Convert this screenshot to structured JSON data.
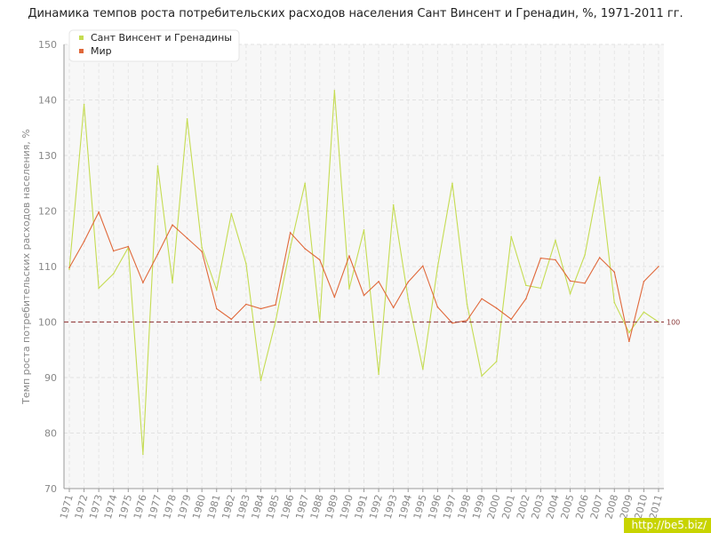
{
  "chart_data": {
    "type": "line",
    "title": "Динамика темпов роста потребительских расходов населения Сант Винсент и Гренадин, %, 1971-2011 гг.",
    "xlabel": "",
    "ylabel": "Темп роста потребительских расходов населения, %",
    "ylim": [
      70,
      150
    ],
    "yticks": [
      70,
      80,
      90,
      100,
      110,
      120,
      130,
      140,
      150
    ],
    "grid": true,
    "legend_position": "top-left",
    "x": [
      "1971",
      "1972",
      "1973",
      "1974",
      "1975",
      "1976",
      "1977",
      "1978",
      "1979",
      "1980",
      "1981",
      "1982",
      "1983",
      "1984",
      "1985",
      "1986",
      "1987",
      "1988",
      "1989",
      "1990",
      "1991",
      "1992",
      "1993",
      "1994",
      "1995",
      "1996",
      "1997",
      "1998",
      "1999",
      "2000",
      "2001",
      "2002",
      "2003",
      "2004",
      "2005",
      "2006",
      "2007",
      "2008",
      "2009",
      "2010",
      "2011"
    ],
    "series": [
      {
        "name": "Сант Винсент и Гренадины",
        "color": "#c5dc52",
        "values": [
          109.5,
          139.2,
          106.1,
          108.7,
          113.4,
          76.2,
          128.1,
          107.1,
          136.6,
          113.4,
          105.8,
          119.5,
          110.5,
          89.5,
          100.1,
          113.4,
          125.0,
          100.1,
          141.7,
          106.0,
          116.6,
          90.6,
          121.1,
          104.2,
          91.5,
          109.9,
          125.0,
          103.2,
          90.3,
          92.9,
          115.4,
          106.6,
          106.1,
          114.7,
          105.1,
          112.1,
          126.1,
          103.5,
          98.1,
          101.8,
          100.0
        ]
      },
      {
        "name": "Мир",
        "color": "#e0683a",
        "values": [
          109.8,
          114.5,
          119.8,
          112.8,
          113.6,
          107.1,
          112.2,
          117.5,
          115.1,
          112.7,
          102.4,
          100.5,
          103.2,
          102.4,
          103.1,
          116.1,
          113.2,
          111.2,
          104.5,
          111.9,
          104.8,
          107.3,
          102.6,
          107.2,
          110.1,
          102.7,
          99.8,
          100.3,
          104.2,
          102.5,
          100.5,
          104.2,
          111.5,
          111.2,
          107.4,
          107.0,
          111.6,
          109.0,
          96.5,
          107.3,
          110.0
        ]
      }
    ],
    "reference_line": {
      "value": 100,
      "label": "100",
      "color": "#9b4a4a"
    }
  },
  "watermark": "http://be5.biz/"
}
